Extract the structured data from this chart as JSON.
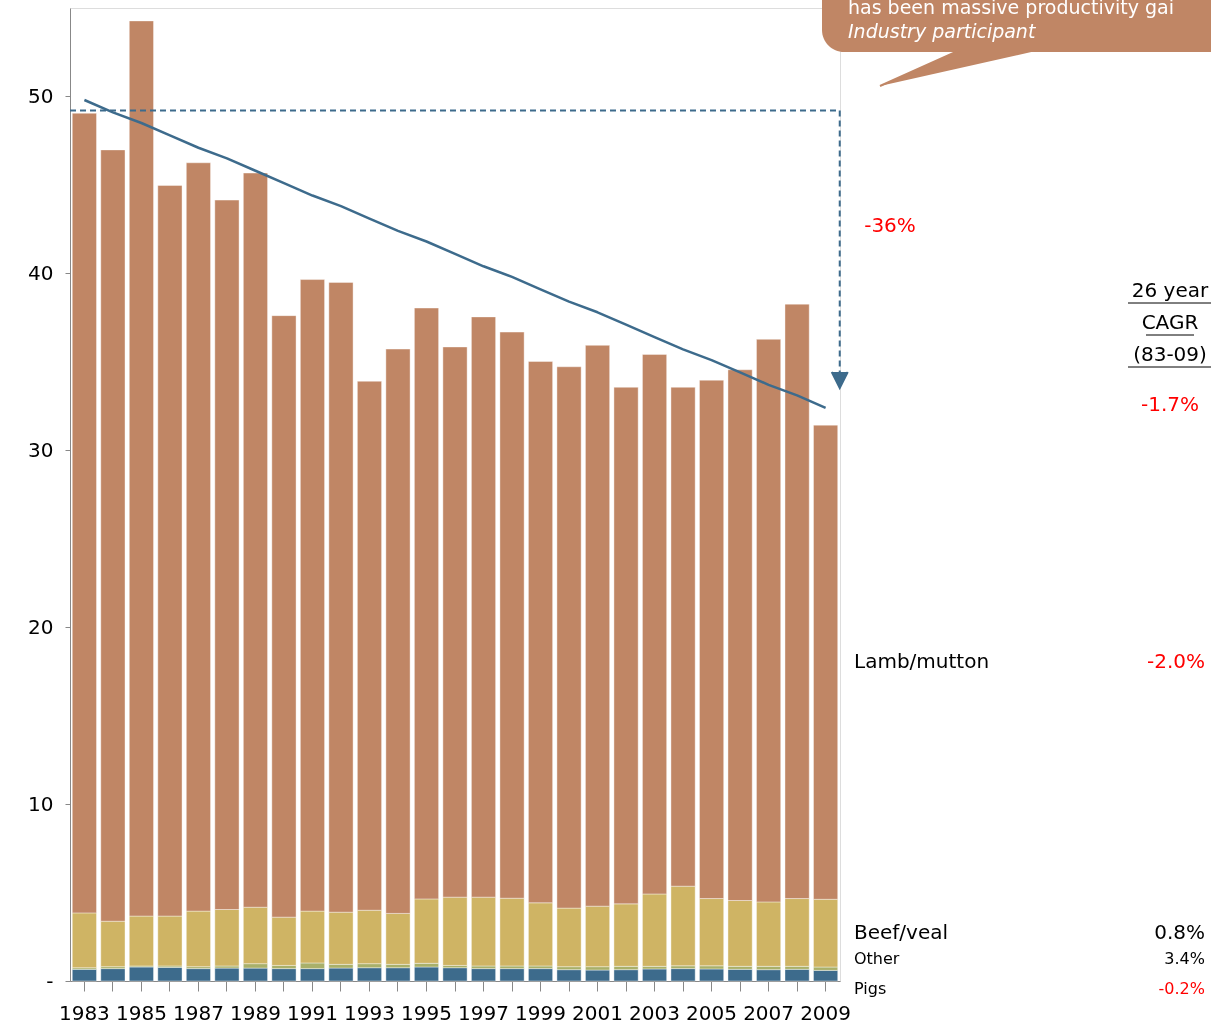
{
  "chart_data": {
    "type": "bar",
    "stacked": true,
    "categories": [
      "1983",
      null,
      "1985",
      null,
      "1987",
      null,
      "1989",
      null,
      "1991",
      null,
      "1993",
      null,
      "1995",
      null,
      "1997",
      null,
      "1999",
      null,
      "2001",
      null,
      "2003",
      null,
      "2005",
      null,
      "2007",
      null,
      "2009"
    ],
    "series": [
      {
        "name": "Pigs",
        "color": "#3d6b8c",
        "values": [
          0.66,
          0.7,
          0.79,
          0.77,
          0.7,
          0.73,
          0.73,
          0.7,
          0.7,
          0.73,
          0.75,
          0.75,
          0.79,
          0.75,
          0.7,
          0.7,
          0.7,
          0.64,
          0.62,
          0.64,
          0.68,
          0.7,
          0.68,
          0.66,
          0.64,
          0.66,
          0.6
        ]
      },
      {
        "name": "Other",
        "color": "#a9b06a",
        "values": [
          0.09,
          0.11,
          0.06,
          0.08,
          0.11,
          0.12,
          0.25,
          0.18,
          0.32,
          0.21,
          0.23,
          0.19,
          0.21,
          0.13,
          0.15,
          0.15,
          0.15,
          0.17,
          0.19,
          0.19,
          0.15,
          0.16,
          0.18,
          0.17,
          0.19,
          0.17,
          0.19
        ]
      },
      {
        "name": "Beef/veal",
        "color": "#cfb464",
        "values": [
          3.1,
          2.57,
          2.82,
          2.82,
          3.14,
          3.19,
          3.19,
          2.73,
          2.93,
          2.95,
          3.02,
          2.88,
          3.64,
          3.86,
          3.89,
          3.83,
          3.57,
          3.31,
          3.42,
          3.53,
          4.09,
          4.5,
          3.8,
          3.72,
          3.64,
          3.83,
          3.83
        ]
      },
      {
        "name": "Lamb/mutton",
        "color": "#c08665",
        "values": [
          45.2,
          43.6,
          50.6,
          41.3,
          42.3,
          40.1,
          41.5,
          34.0,
          35.7,
          35.6,
          29.9,
          31.9,
          33.4,
          31.1,
          32.8,
          32.0,
          30.6,
          30.6,
          31.7,
          29.2,
          30.5,
          28.2,
          29.3,
          30.0,
          31.8,
          33.6,
          26.8
        ]
      },
      {
        "type": "line",
        "color": "#3d6b8c",
        "values": [
          49.8,
          49.1,
          48.5,
          47.8,
          47.1,
          46.5,
          45.8,
          45.1,
          44.4,
          43.8,
          43.1,
          42.4,
          41.8,
          41.1,
          40.4,
          39.8,
          39.1,
          38.4,
          37.8,
          37.1,
          36.4,
          35.7,
          35.1,
          34.4,
          33.7,
          33.1,
          32.4
        ]
      }
    ],
    "ylim": [
      0,
      55
    ],
    "yticks": [
      {
        "value": 0,
        "label": "-"
      },
      10,
      20,
      30,
      40,
      50
    ],
    "grid": false,
    "legend": false,
    "ref_lines": [
      {
        "axis": "y",
        "value": 49.2,
        "color": "#3d6b8c",
        "line_style": "dashed"
      }
    ],
    "annotations": [
      "-36%",
      "26 year",
      "CAGR",
      "(83-09)",
      "-1.7%",
      "-0.2%",
      "3.4%",
      "0.8%",
      "-2.0%",
      "has been massive productivity gai",
      "Industry participant"
    ]
  }
}
